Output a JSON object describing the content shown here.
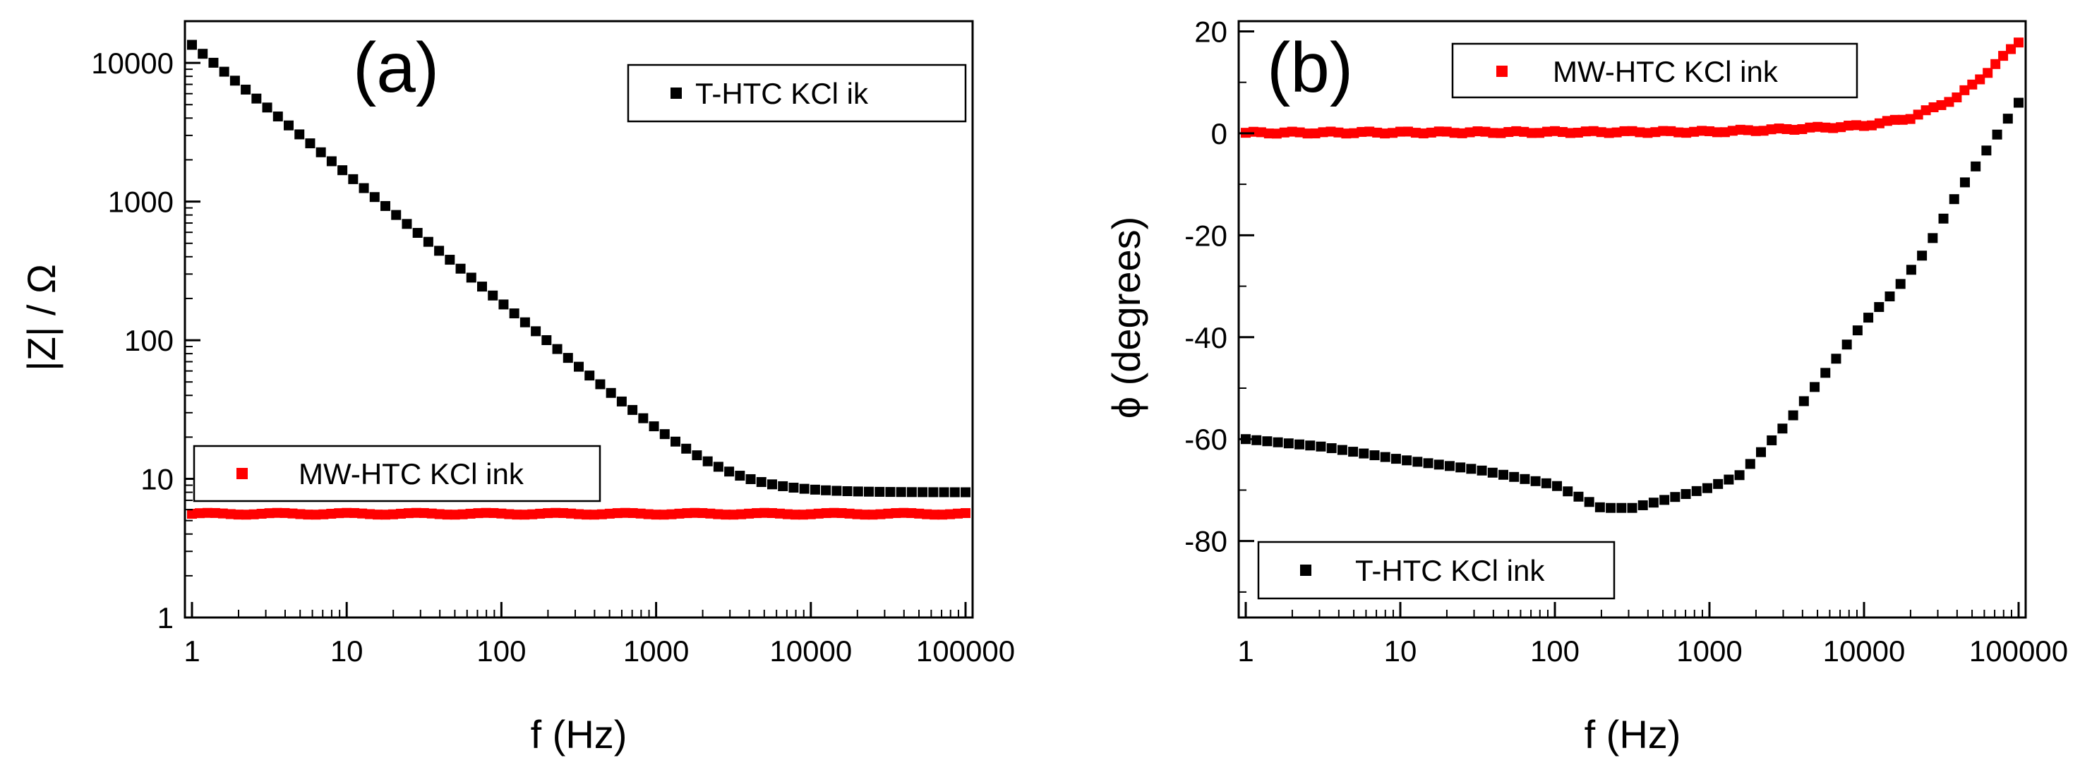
{
  "colors": {
    "black_series": "#000000",
    "red_series": "#ff0000"
  },
  "chart_data": [
    {
      "type": "scatter",
      "panel_label": "(a)",
      "xlabel": "f (Hz)",
      "ylabel": "|Z| / Ω",
      "xscale": "log",
      "yscale": "log",
      "xlim": [
        1,
        100000
      ],
      "ylim": [
        1,
        20000
      ],
      "x_ticks": [
        "1",
        "10",
        "100",
        "1000",
        "10000",
        "100000"
      ],
      "y_ticks": [
        "1",
        "10",
        "100",
        "1000",
        "10000"
      ],
      "series": [
        {
          "name": "T-HTC KCl ik",
          "color": "#000000",
          "legend": "top-right",
          "points": [
            {
              "log_f": 0.0,
              "value": 13500
            },
            {
              "log_f": 5.0,
              "value": 8.0
            }
          ],
          "shape": "impedance-decay"
        },
        {
          "name": "MW-HTC KCl ink",
          "color": "#ff0000",
          "legend": "lower-left",
          "constant": 5.6
        }
      ]
    },
    {
      "type": "scatter",
      "panel_label": "(b)",
      "xlabel": "f (Hz)",
      "ylabel": "ϕ (degrees)",
      "xscale": "log",
      "yscale": "linear",
      "xlim": [
        1,
        100000
      ],
      "ylim": [
        -95,
        22
      ],
      "x_ticks": [
        "1",
        "10",
        "100",
        "1000",
        "10000",
        "100000"
      ],
      "y_ticks": [
        "20",
        "0",
        "-20",
        "-40",
        "-60",
        "-80"
      ],
      "series": [
        {
          "name": "MW-HTC KCl ink",
          "color": "#ff0000",
          "legend": "top-center",
          "anchors": [
            [
              0,
              0.1
            ],
            [
              3.0,
              0.3
            ],
            [
              3.5,
              0.8
            ],
            [
              4.0,
              1.5
            ],
            [
              4.3,
              3
            ],
            [
              4.6,
              7
            ],
            [
              4.8,
              12
            ],
            [
              5.0,
              18
            ]
          ]
        },
        {
          "name": "T-HTC KCl ink",
          "color": "#000000",
          "legend": "bottom-left",
          "anchors": [
            [
              0,
              -60
            ],
            [
              0.5,
              -61.5
            ],
            [
              1.0,
              -64
            ],
            [
              1.5,
              -66
            ],
            [
              2.0,
              -69
            ],
            [
              2.2,
              -72
            ],
            [
              2.3,
              -73.5
            ],
            [
              2.5,
              -73.5
            ],
            [
              2.7,
              -72
            ],
            [
              3.0,
              -69.5
            ],
            [
              3.2,
              -67
            ],
            [
              3.5,
              -57
            ],
            [
              3.8,
              -45
            ],
            [
              4.0,
              -37
            ],
            [
              4.2,
              -31
            ],
            [
              4.4,
              -23
            ],
            [
              4.6,
              -12
            ],
            [
              4.8,
              -3
            ],
            [
              5.0,
              6
            ]
          ]
        }
      ]
    }
  ]
}
